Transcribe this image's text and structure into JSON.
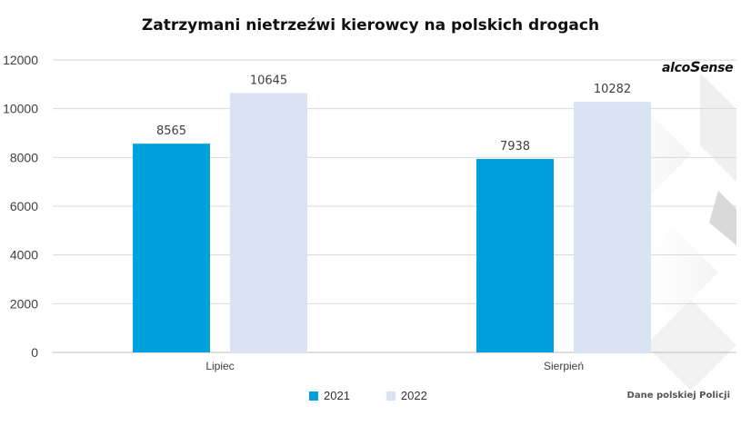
{
  "title": "Zatrzymani nietrzeźwi kierowcy na polskich drogach",
  "source": "Dane polskiej Policji",
  "logo_text": "alcoSense",
  "colors": {
    "series_2021": "#00A0DC",
    "series_2022": "#DAE3F3"
  },
  "chart_data": {
    "type": "bar",
    "title": "Zatrzymani nietrzeźwi kierowcy na polskich drogach",
    "categories": [
      "Lipiec",
      "Sierpień"
    ],
    "series": [
      {
        "name": "2021",
        "values": [
          8565,
          7938
        ]
      },
      {
        "name": "2022",
        "values": [
          10645,
          10282
        ]
      }
    ],
    "ylim": [
      0,
      12000
    ],
    "yticks": [
      0,
      2000,
      4000,
      6000,
      8000,
      10000,
      12000
    ],
    "grid": true,
    "legend": "bottom",
    "data_labels": true
  }
}
